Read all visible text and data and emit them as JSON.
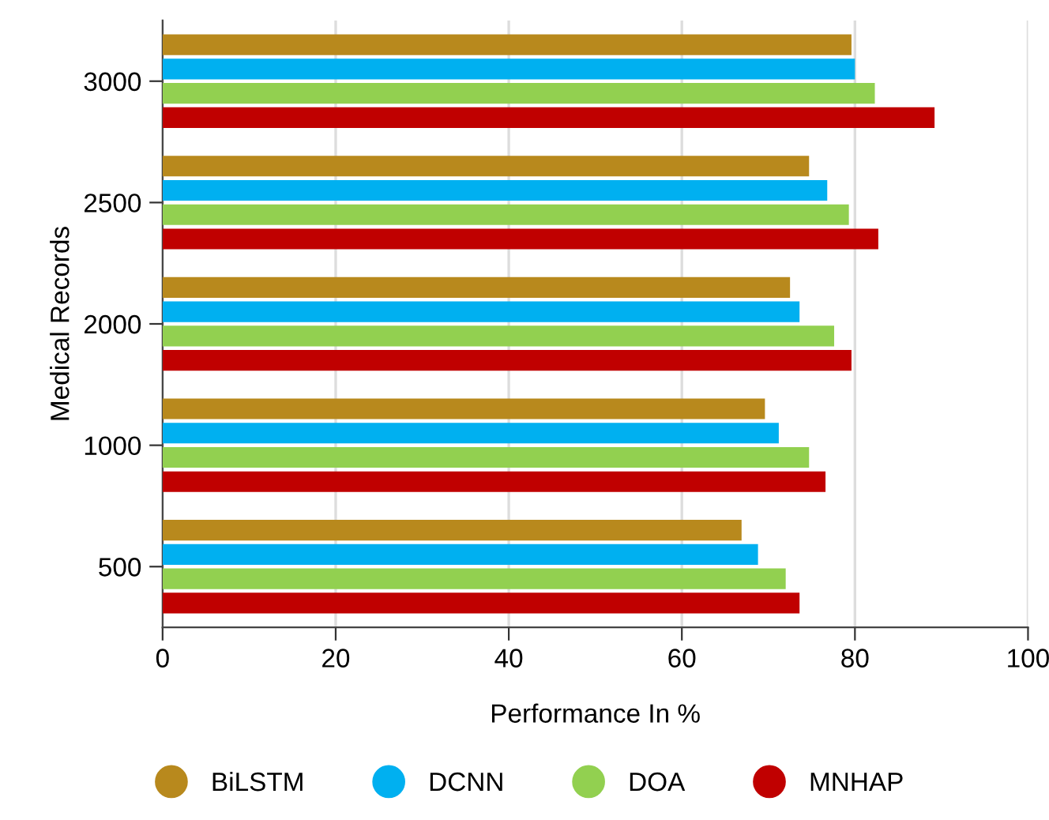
{
  "chart_data": {
    "type": "bar",
    "orientation": "horizontal",
    "xlabel": "Performance In %",
    "ylabel": "Medical Records",
    "categories": [
      "3000",
      "2500",
      "2000",
      "1000",
      "500"
    ],
    "series": [
      {
        "name": "BiLSTM",
        "color": "#b8891d",
        "values": [
          79.6,
          74.7,
          72.5,
          69.6,
          66.9
        ]
      },
      {
        "name": "DCNN",
        "color": "#00b0f0",
        "values": [
          80.0,
          76.8,
          73.6,
          71.2,
          68.8
        ]
      },
      {
        "name": "DOA",
        "color": "#92d050",
        "values": [
          82.3,
          79.3,
          77.6,
          74.7,
          72.0
        ]
      },
      {
        "name": "MNHAP",
        "color": "#c00000",
        "values": [
          89.2,
          82.7,
          79.6,
          76.6,
          73.6
        ]
      }
    ],
    "xlim": [
      0,
      100
    ],
    "xticks": [
      0,
      20,
      40,
      60,
      80,
      100
    ],
    "grid": "x",
    "legend": "bottom"
  }
}
